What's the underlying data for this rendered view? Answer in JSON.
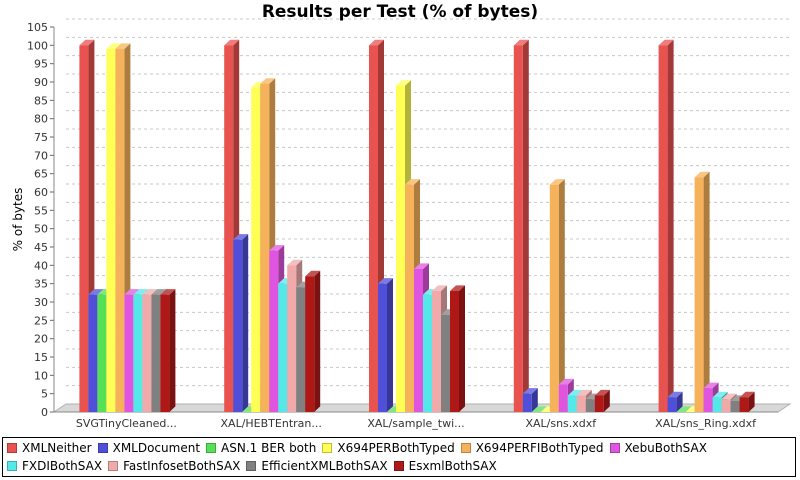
{
  "chart_data": {
    "type": "bar",
    "title": "Results per Test (% of bytes)",
    "xlabel": "",
    "ylabel": "% of bytes",
    "ylim": [
      0,
      105
    ],
    "yticks": [
      0,
      5,
      10,
      15,
      20,
      25,
      30,
      35,
      40,
      45,
      50,
      55,
      60,
      65,
      70,
      75,
      80,
      85,
      90,
      95,
      100,
      105
    ],
    "grid": true,
    "legend_position": "bottom",
    "categories": [
      "SVGTinyCleaned...",
      "XAL/HEBTEntran...",
      "XAL/sample_twi...",
      "XAL/sns.xdxf",
      "XAL/sns_Ring.xdxf"
    ],
    "series": [
      {
        "name": "XMLNeither",
        "color": "#e8524f",
        "values": [
          100,
          100,
          100,
          100,
          100
        ]
      },
      {
        "name": "XMLDocument",
        "color": "#4f4fd9",
        "values": [
          32,
          47,
          35,
          5,
          4
        ]
      },
      {
        "name": "ASN.1 BER both",
        "color": "#55e055",
        "values": [
          32,
          0,
          0,
          0,
          0
        ]
      },
      {
        "name": "X694PERBothTyped",
        "color": "#ffff55",
        "values": [
          99,
          88.5,
          89,
          0,
          0
        ]
      },
      {
        "name": "X694PERFIBothTyped",
        "color": "#f5b25a",
        "values": [
          99,
          89.5,
          62,
          62,
          64
        ]
      },
      {
        "name": "XebuBothSAX",
        "color": "#e055e0",
        "values": [
          32,
          44,
          39,
          7.5,
          6.5
        ]
      },
      {
        "name": "FXDIBothSAX",
        "color": "#55e8e8",
        "values": [
          32,
          35,
          32,
          4.5,
          4
        ]
      },
      {
        "name": "FastInfosetBothSAX",
        "color": "#f0aaaa",
        "values": [
          32,
          40,
          33,
          4.5,
          3.5
        ]
      },
      {
        "name": "EfficientXMLBothSAX",
        "color": "#808080",
        "values": [
          32,
          34,
          26.5,
          3.5,
          3
        ]
      },
      {
        "name": "EsxmlBothSAX",
        "color": "#b01818",
        "values": [
          32,
          37,
          33,
          4.5,
          4
        ]
      }
    ]
  }
}
